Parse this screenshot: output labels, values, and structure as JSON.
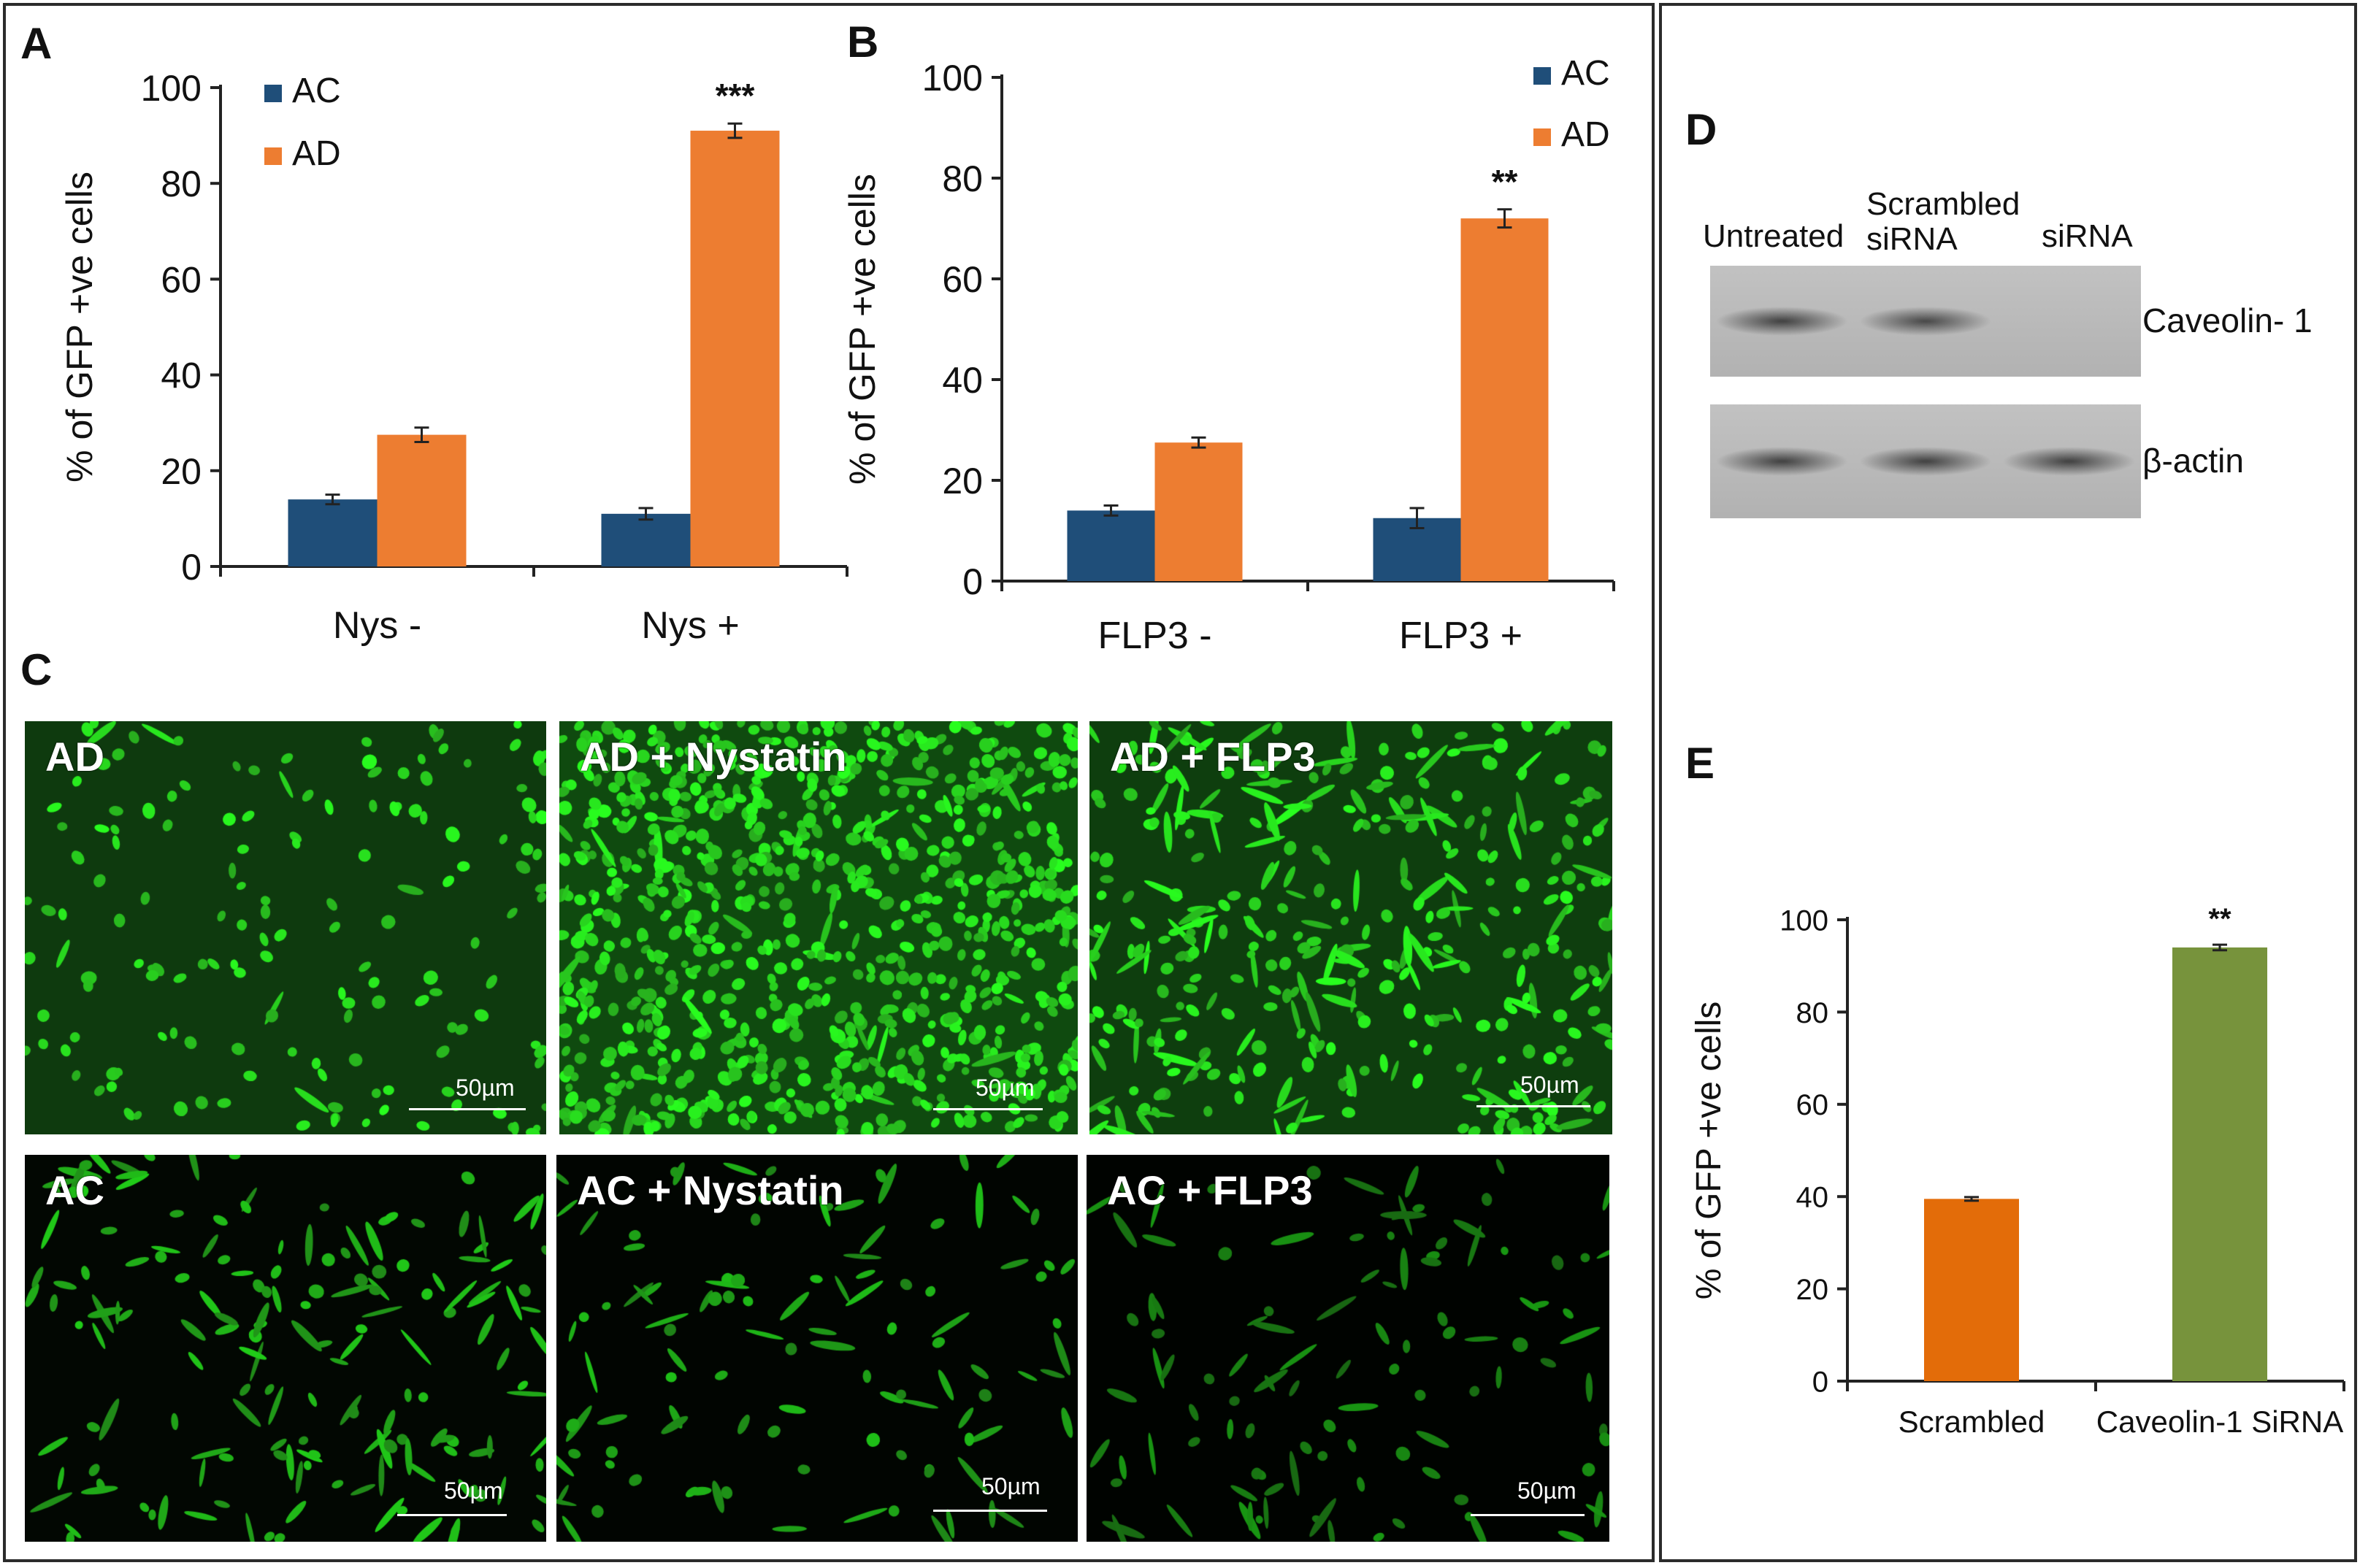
{
  "panels": {
    "a": "A",
    "b": "B",
    "c": "C",
    "d": "D",
    "e": "E"
  },
  "chart_data": [
    {
      "id": "A",
      "type": "bar",
      "categories": [
        "Nys -",
        "Nys +"
      ],
      "series": [
        {
          "name": "AC",
          "values": [
            14,
            11
          ],
          "errors": [
            1,
            1.2
          ],
          "color": "#1f4e79"
        },
        {
          "name": "AD",
          "values": [
            27.5,
            91
          ],
          "errors": [
            1.5,
            1.5
          ],
          "color": "#ed7d31"
        }
      ],
      "significance": [
        {
          "category": "Nys +",
          "series": "AD",
          "text": "***"
        }
      ],
      "ylabel": "% of GFP +ve cells",
      "ylim": [
        0,
        100
      ],
      "yticks": [
        0,
        20,
        40,
        60,
        80,
        100
      ],
      "legend": "top-left",
      "grid": false
    },
    {
      "id": "B",
      "type": "bar",
      "categories": [
        "FLP3 -",
        "FLP3 +"
      ],
      "series": [
        {
          "name": "AC",
          "values": [
            14,
            12.5
          ],
          "errors": [
            1,
            2
          ],
          "color": "#1f4e79"
        },
        {
          "name": "AD",
          "values": [
            27.5,
            72
          ],
          "errors": [
            1,
            1.8
          ],
          "color": "#ed7d31"
        }
      ],
      "significance": [
        {
          "category": "FLP3 +",
          "series": "AD",
          "text": "**"
        }
      ],
      "ylabel": "% of GFP +ve cells",
      "ylim": [
        0,
        100
      ],
      "yticks": [
        0,
        20,
        40,
        60,
        80,
        100
      ],
      "legend": "top-right",
      "grid": false
    },
    {
      "id": "E",
      "type": "bar",
      "categories": [
        "Scrambled",
        "Caveolin-1 SiRNA"
      ],
      "series": [
        {
          "values": [
            39.5,
            94
          ],
          "errors": [
            0.4,
            0.6
          ],
          "colors": [
            "#e36c09",
            "#77933c"
          ]
        }
      ],
      "significance": [
        {
          "category": "Caveolin-1 SiRNA",
          "text": "**"
        }
      ],
      "ylabel": "% of GFP +ve cells",
      "ylim": [
        0,
        100
      ],
      "yticks": [
        0,
        20,
        40,
        60,
        80,
        100
      ],
      "grid": false
    }
  ],
  "micrographs": [
    {
      "label": "AD",
      "scale": "50µm",
      "density": 160,
      "shape": "round",
      "brightness": 1.0,
      "background": "#0e3a0e"
    },
    {
      "label": "AD + Nystatin",
      "scale": "50µm",
      "density": 900,
      "shape": "round",
      "brightness": 1.0,
      "background": "#0f4a0f"
    },
    {
      "label": "AD + FLP3",
      "scale": "50µm",
      "density": 380,
      "shape": "mixed",
      "brightness": 1.0,
      "background": "#0e3e0e"
    },
    {
      "label": "AC",
      "scale": "50µm",
      "density": 170,
      "shape": "elongated",
      "brightness": 0.8,
      "background": "#020702"
    },
    {
      "label": "AC + Nystatin",
      "scale": "50µm",
      "density": 110,
      "shape": "elongated",
      "brightness": 0.75,
      "background": "#010501"
    },
    {
      "label": "AC + FLP3",
      "scale": "50µm",
      "density": 110,
      "shape": "elongated",
      "brightness": 0.6,
      "background": "#000300"
    }
  ],
  "western_blot": {
    "lanes": [
      "Untreated",
      "Scrambled siRNA",
      "siRNA"
    ],
    "bands": [
      {
        "label": "Caveolin- 1",
        "intensities": [
          0.8,
          0.75,
          0.0
        ]
      },
      {
        "label": "β-actin",
        "intensities": [
          0.8,
          0.8,
          0.8
        ]
      }
    ]
  }
}
